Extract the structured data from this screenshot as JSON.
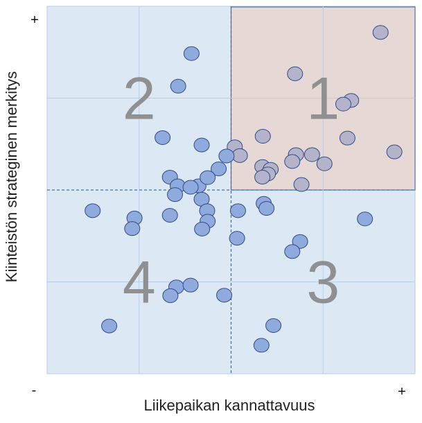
{
  "chart_data": {
    "type": "scatter",
    "xlabel": "Liikepaikan kannattavuus",
    "ylabel": "Kiinteistön strateginen merkitys",
    "xlim": [
      0,
      8
    ],
    "ylim": [
      0,
      8
    ],
    "divider": {
      "x": 4,
      "y": 4
    },
    "grid": true,
    "axis_signs": {
      "x_min": "-",
      "x_max": "+",
      "y_max": "+"
    },
    "quadrant_labels": [
      {
        "text": "1",
        "x": 6.0,
        "y": 6.0
      },
      {
        "text": "2",
        "x": 2.0,
        "y": 6.0
      },
      {
        "text": "3",
        "x": 6.0,
        "y": 2.0
      },
      {
        "text": "4",
        "x": 2.0,
        "y": 2.0
      }
    ],
    "colors": {
      "background": "#dde8f5",
      "highlight_quadrant": "#e6d8d5",
      "highlight_border": "#4a70b0",
      "grid": "#b9cde6",
      "divider": "#3a7ab8",
      "point": "#8faadc",
      "point_highlight": "#b4b3c9",
      "point_stroke": "#2f4a86"
    },
    "points": [
      [
        7.25,
        7.43
      ],
      [
        5.39,
        6.53
      ],
      [
        6.61,
        5.95
      ],
      [
        6.44,
        5.87
      ],
      [
        6.53,
        5.13
      ],
      [
        4.69,
        5.17
      ],
      [
        7.55,
        4.83
      ],
      [
        5.41,
        4.77
      ],
      [
        5.76,
        4.77
      ],
      [
        4.08,
        4.94
      ],
      [
        4.19,
        4.75
      ],
      [
        5.33,
        4.62
      ],
      [
        6.03,
        4.57
      ],
      [
        4.68,
        4.51
      ],
      [
        4.86,
        4.45
      ],
      [
        4.8,
        4.35
      ],
      [
        4.68,
        4.28
      ],
      [
        5.53,
        4.12
      ],
      [
        3.14,
        6.97
      ],
      [
        2.85,
        6.26
      ],
      [
        2.51,
        5.14
      ],
      [
        3.36,
        4.98
      ],
      [
        3.9,
        4.74
      ],
      [
        3.73,
        4.46
      ],
      [
        2.67,
        4.28
      ],
      [
        2.84,
        4.09
      ],
      [
        3.29,
        4.09
      ],
      [
        3.49,
        4.27
      ],
      [
        3.12,
        4.06
      ],
      [
        2.78,
        3.9
      ],
      [
        3.36,
        3.8
      ],
      [
        0.99,
        3.55
      ],
      [
        1.9,
        3.39
      ],
      [
        1.85,
        3.16
      ],
      [
        2.67,
        3.45
      ],
      [
        3.48,
        3.55
      ],
      [
        3.49,
        3.32
      ],
      [
        3.37,
        3.15
      ],
      [
        4.15,
        3.55
      ],
      [
        4.71,
        3.71
      ],
      [
        4.77,
        3.6
      ],
      [
        6.91,
        3.37
      ],
      [
        4.13,
        2.95
      ],
      [
        5.5,
        2.88
      ],
      [
        5.33,
        2.66
      ],
      [
        2.81,
        1.89
      ],
      [
        3.12,
        1.93
      ],
      [
        2.68,
        1.7
      ],
      [
        3.85,
        1.71
      ],
      [
        1.35,
        1.04
      ],
      [
        4.92,
        1.05
      ],
      [
        4.66,
        0.62
      ]
    ]
  }
}
